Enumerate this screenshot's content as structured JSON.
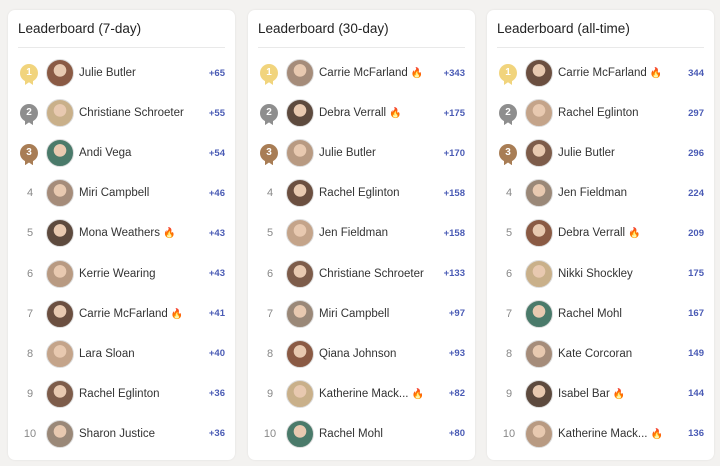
{
  "colors": {
    "gold": "#f1d47d",
    "silver": "#8e8e8e",
    "bronze": "#a87d55",
    "score": "#4a5bb5"
  },
  "boards": [
    {
      "title": "Leaderboard (7-day)",
      "rows": [
        {
          "rank": "1",
          "name": "Julie Butler",
          "fire": false,
          "score": "+65"
        },
        {
          "rank": "2",
          "name": "Christiane Schroeter",
          "fire": false,
          "score": "+55"
        },
        {
          "rank": "3",
          "name": "Andi Vega",
          "fire": false,
          "score": "+54"
        },
        {
          "rank": "4",
          "name": "Miri Campbell",
          "fire": false,
          "score": "+46"
        },
        {
          "rank": "5",
          "name": "Mona Weathers",
          "fire": true,
          "score": "+43"
        },
        {
          "rank": "6",
          "name": "Kerrie Wearing",
          "fire": false,
          "score": "+43"
        },
        {
          "rank": "7",
          "name": "Carrie McFarland",
          "fire": true,
          "score": "+41"
        },
        {
          "rank": "8",
          "name": "Lara Sloan",
          "fire": false,
          "score": "+40"
        },
        {
          "rank": "9",
          "name": "Rachel Eglinton",
          "fire": false,
          "score": "+36"
        },
        {
          "rank": "10",
          "name": "Sharon Justice",
          "fire": false,
          "score": "+36"
        }
      ]
    },
    {
      "title": "Leaderboard (30-day)",
      "rows": [
        {
          "rank": "1",
          "name": "Carrie McFarland",
          "fire": true,
          "score": "+343"
        },
        {
          "rank": "2",
          "name": "Debra Verrall",
          "fire": true,
          "score": "+175"
        },
        {
          "rank": "3",
          "name": "Julie Butler",
          "fire": false,
          "score": "+170"
        },
        {
          "rank": "4",
          "name": "Rachel Eglinton",
          "fire": false,
          "score": "+158"
        },
        {
          "rank": "5",
          "name": "Jen Fieldman",
          "fire": false,
          "score": "+158"
        },
        {
          "rank": "6",
          "name": "Christiane Schroeter",
          "fire": false,
          "score": "+133"
        },
        {
          "rank": "7",
          "name": "Miri Campbell",
          "fire": false,
          "score": "+97"
        },
        {
          "rank": "8",
          "name": "Qiana Johnson",
          "fire": false,
          "score": "+93"
        },
        {
          "rank": "9",
          "name": "Katherine Mack...",
          "fire": true,
          "score": "+82"
        },
        {
          "rank": "10",
          "name": "Rachel Mohl",
          "fire": false,
          "score": "+80"
        }
      ]
    },
    {
      "title": "Leaderboard (all-time)",
      "rows": [
        {
          "rank": "1",
          "name": "Carrie McFarland",
          "fire": true,
          "score": "344"
        },
        {
          "rank": "2",
          "name": "Rachel Eglinton",
          "fire": false,
          "score": "297"
        },
        {
          "rank": "3",
          "name": "Julie Butler",
          "fire": false,
          "score": "296"
        },
        {
          "rank": "4",
          "name": "Jen Fieldman",
          "fire": false,
          "score": "224"
        },
        {
          "rank": "5",
          "name": "Debra Verrall",
          "fire": true,
          "score": "209"
        },
        {
          "rank": "6",
          "name": "Nikki Shockley",
          "fire": false,
          "score": "175"
        },
        {
          "rank": "7",
          "name": "Rachel Mohl",
          "fire": false,
          "score": "167"
        },
        {
          "rank": "8",
          "name": "Kate Corcoran",
          "fire": false,
          "score": "149"
        },
        {
          "rank": "9",
          "name": "Isabel Bar",
          "fire": true,
          "score": "144"
        },
        {
          "rank": "10",
          "name": "Katherine Mack...",
          "fire": true,
          "score": "136"
        }
      ]
    }
  ]
}
